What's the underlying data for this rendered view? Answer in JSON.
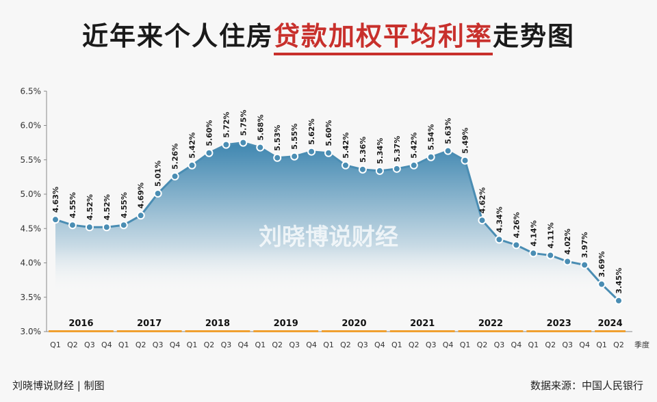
{
  "title": {
    "prefix": "近年来个人住房",
    "highlight": "贷款加权平均利率",
    "suffix": "走势图"
  },
  "watermark": "刘晓博说财经",
  "footer": {
    "left": "刘晓博说财经 | 制图",
    "right": "数据来源：中国人民银行"
  },
  "colors": {
    "line": "#4a8db3",
    "fill_top": "#3e86b0",
    "accent": "#c8302c",
    "year_bar": "#f0a030"
  },
  "chart_data": {
    "type": "area",
    "xlabel": "季度",
    "ylabel": "",
    "ylim": [
      3.0,
      6.5
    ],
    "y_ticks": [
      "3.0%",
      "3.5%",
      "4.0%",
      "4.5%",
      "5.0%",
      "5.5%",
      "6.0%",
      "6.5%"
    ],
    "years": [
      {
        "label": "2016",
        "quarters": 4
      },
      {
        "label": "2017",
        "quarters": 4
      },
      {
        "label": "2018",
        "quarters": 4
      },
      {
        "label": "2019",
        "quarters": 4
      },
      {
        "label": "2020",
        "quarters": 4
      },
      {
        "label": "2021",
        "quarters": 4
      },
      {
        "label": "2022",
        "quarters": 4
      },
      {
        "label": "2023",
        "quarters": 4
      },
      {
        "label": "2024",
        "quarters": 2
      }
    ],
    "categories": [
      "Q1",
      "Q2",
      "Q3",
      "Q4",
      "Q1",
      "Q2",
      "Q3",
      "Q4",
      "Q1",
      "Q2",
      "Q3",
      "Q4",
      "Q1",
      "Q2",
      "Q3",
      "Q4",
      "Q1",
      "Q2",
      "Q3",
      "Q4",
      "Q1",
      "Q2",
      "Q3",
      "Q4",
      "Q1",
      "Q2",
      "Q3",
      "Q4",
      "Q1",
      "Q2",
      "Q3",
      "Q4",
      "Q1",
      "Q2"
    ],
    "values": [
      4.63,
      4.55,
      4.52,
      4.52,
      4.55,
      4.69,
      5.01,
      5.26,
      5.42,
      5.6,
      5.72,
      5.75,
      5.68,
      5.53,
      5.55,
      5.62,
      5.6,
      5.42,
      5.36,
      5.34,
      5.37,
      5.42,
      5.54,
      5.63,
      5.49,
      4.62,
      4.34,
      4.26,
      4.14,
      4.11,
      4.02,
      3.97,
      3.69,
      3.45
    ],
    "labels": [
      "4.63%",
      "4.55%",
      "4.52%",
      "4.52%",
      "4.55%",
      "4.69%",
      "5.01%",
      "5.26%",
      "5.42%",
      "5.60%",
      "5.72%",
      "5.75%",
      "5.68%",
      "5.53%",
      "5.55%",
      "5.62%",
      "5.60%",
      "5.42%",
      "5.36%",
      "5.34%",
      "5.37%",
      "5.42%",
      "5.54%",
      "5.63%",
      "5.49%",
      "4.62%",
      "4.34%",
      "4.26%",
      "4.14%",
      "4.11%",
      "4.02%",
      "3.97%",
      "3.69%",
      "3.45%"
    ]
  }
}
